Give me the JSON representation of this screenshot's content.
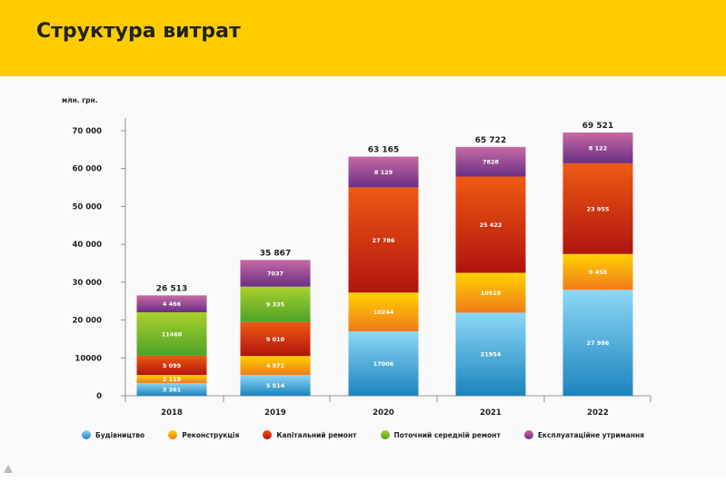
{
  "page": {
    "title": "Структура витрат"
  },
  "chart_data": {
    "type": "bar",
    "stacked": true,
    "unit_label": "млн. грн.",
    "categories": [
      "2018",
      "2019",
      "2020",
      "2021",
      "2022"
    ],
    "ylim": [
      0,
      70000
    ],
    "yticks": [
      "0",
      "10000",
      "20 000",
      "30 000",
      "40 000",
      "50 000",
      "60 000",
      "70 000"
    ],
    "yticks_values": [
      0,
      10000,
      20000,
      30000,
      40000,
      50000,
      60000,
      70000
    ],
    "totals": [
      "26 513",
      "35 867",
      "63 165",
      "65 722",
      "69 521"
    ],
    "series": [
      {
        "name": "Будівництво",
        "color": "#1aa3d9",
        "values": [
          3361,
          5514,
          17006,
          21954,
          27986
        ],
        "labels": [
          "3 361",
          "5 514",
          "17006",
          "21954",
          "27 986"
        ]
      },
      {
        "name": "Реконструкція",
        "color": "#f39200",
        "values": [
          2119,
          4971,
          10244,
          10518,
          9458
        ],
        "labels": [
          "2 119",
          "4 971",
          "10244",
          "10518",
          "9 458"
        ]
      },
      {
        "name": "Капітальний ремонт",
        "color": "#d93a0b",
        "values": [
          5099,
          9010,
          27786,
          25422,
          23955
        ],
        "labels": [
          "5 099",
          "9 010",
          "27 786",
          "25 422",
          "23 955"
        ]
      },
      {
        "name": "Поточний середній ремонт",
        "color": "#6cb52d",
        "values": [
          11468,
          9335,
          0,
          0,
          0
        ],
        "labels": [
          "11468",
          "9 335",
          "",
          "",
          ""
        ]
      },
      {
        "name": "Експлуатаційне утримання",
        "color": "#9b3a8e",
        "values": [
          4466,
          7037,
          8129,
          7828,
          8122
        ],
        "labels": [
          "4 466",
          "7037",
          "8 129",
          "7828",
          "8 122"
        ]
      }
    ],
    "legend_position": "bottom"
  }
}
